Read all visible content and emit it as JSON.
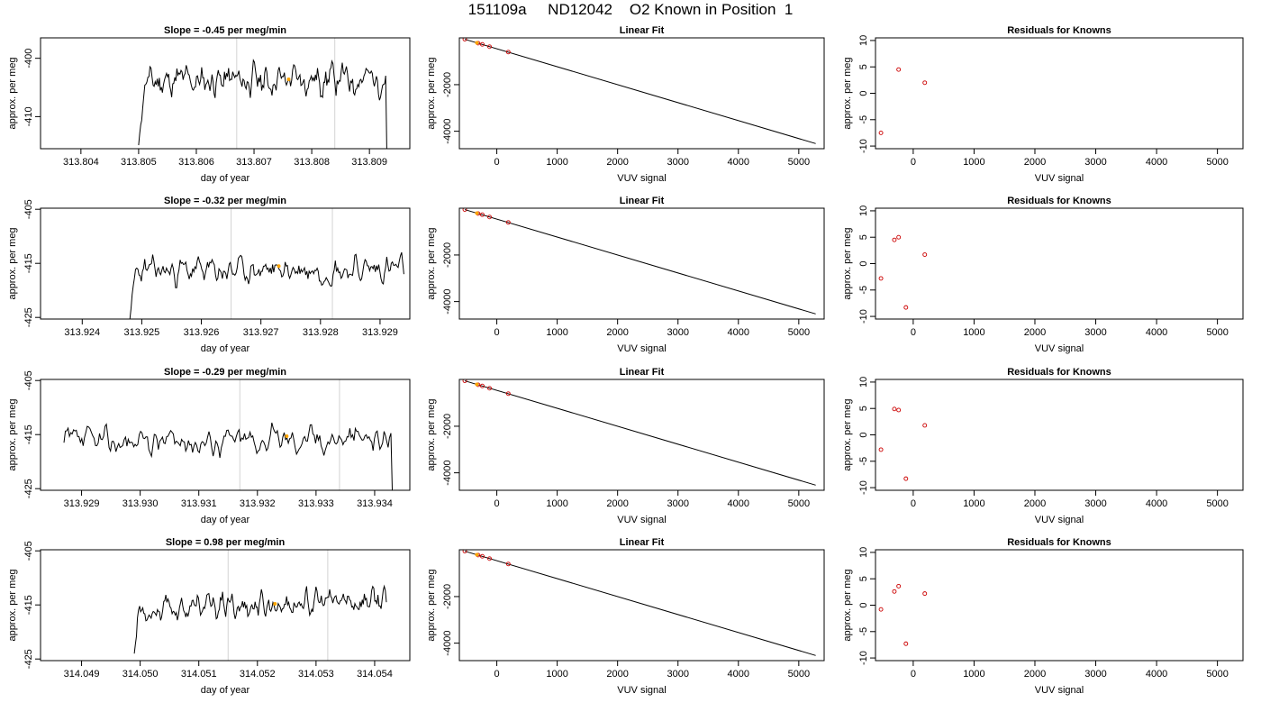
{
  "page_title": "151109a     ND12042    O2 Known in Position  1",
  "colors": {
    "trace": "#000000",
    "gridline": "#d3d3d3",
    "residual_point": "#cc0000",
    "highlight": "#ffa500",
    "frame": "#000000"
  },
  "chart_data": [
    {
      "type": "line",
      "title": "Slope =  -0.45  per meg/min",
      "xlabel": "day of year",
      "ylabel": "approx. per meg",
      "xlim": [
        313.8033,
        313.8097
      ],
      "ylim": [
        -415.5,
        -396.5
      ],
      "xticks": [
        "313.804",
        "313.805",
        "313.806",
        "313.807",
        "313.808",
        "313.809"
      ],
      "xtick_values": [
        313.804,
        313.805,
        313.806,
        313.807,
        313.808,
        313.809
      ],
      "yticks": [
        "-400",
        "-410"
      ],
      "ytick_values": [
        -400,
        -410
      ],
      "vlines": [
        313.8067,
        313.8084
      ],
      "x_start": 313.805,
      "x_end": 313.8093,
      "y_start": -414.9,
      "y_end": -415.5,
      "baseline": -404.0,
      "noise": 2.6,
      "trend_end": 0.6,
      "rise_steps": 6,
      "seed": 11,
      "highlight_x": 313.8076,
      "highlight_y": -403.6
    },
    {
      "type": "line",
      "title": "Linear Fit",
      "xlabel": "VUV signal",
      "ylabel": "approx. per meg",
      "xlim": [
        -620,
        5420
      ],
      "ylim": [
        -4750,
        10
      ],
      "xticks": [
        "0",
        "1000",
        "2000",
        "3000",
        "4000",
        "5000"
      ],
      "xtick_values": [
        0,
        1000,
        2000,
        3000,
        4000,
        5000
      ],
      "yticks": [
        "-2000",
        "-4000"
      ],
      "ytick_values": [
        -2000,
        -4000
      ],
      "line": {
        "x": [
          -530,
          5280
        ],
        "y": [
          -50,
          -4530
        ]
      },
      "points": {
        "x": [
          -530,
          -310,
          -240,
          -120,
          190
        ],
        "y": [
          -50,
          -220,
          -270,
          -370,
          -600
        ]
      },
      "highlight_x": -330,
      "highlight_y": -205
    },
    {
      "type": "scatter",
      "title": "Residuals for Knowns",
      "xlabel": "VUV signal",
      "ylabel": "approx. per meg",
      "xlim": [
        -620,
        5420
      ],
      "ylim": [
        -10.5,
        10.5
      ],
      "xticks": [
        "0",
        "1000",
        "2000",
        "3000",
        "4000",
        "5000"
      ],
      "xtick_values": [
        0,
        1000,
        2000,
        3000,
        4000,
        5000
      ],
      "yticks": [
        "10",
        "5",
        "0",
        "-5",
        "-10"
      ],
      "ytick_values": [
        10,
        5,
        0,
        -5,
        -10
      ],
      "points": {
        "x": [
          -530,
          -240,
          190
        ],
        "y": [
          -7.5,
          4.5,
          2.0
        ]
      }
    },
    {
      "type": "line",
      "title": "Slope =  -0.32  per meg/min",
      "xlabel": "day of year",
      "ylabel": "approx. per meg",
      "xlim": [
        313.9233,
        313.9295
      ],
      "ylim": [
        -425.3,
        -404.8
      ],
      "xticks": [
        "313.924",
        "313.925",
        "313.926",
        "313.927",
        "313.928",
        "313.929"
      ],
      "xtick_values": [
        313.924,
        313.925,
        313.926,
        313.927,
        313.928,
        313.929
      ],
      "yticks": [
        "-405",
        "-415",
        "-425"
      ],
      "ytick_values": [
        -405,
        -415,
        -425
      ],
      "vlines": [
        313.9265,
        313.9282
      ],
      "x_start": 313.9248,
      "x_end": 313.9294,
      "y_start": -425.3,
      "y_end": -417.0,
      "baseline": -416.5,
      "noise": 2.4,
      "trend_end": 0.5,
      "rise_steps": 5,
      "seed": 23,
      "highlight_x": 313.9273,
      "highlight_y": -415.5
    },
    {
      "type": "line",
      "title": "Linear Fit",
      "xlabel": "VUV signal",
      "ylabel": "approx. per meg",
      "xlim": [
        -620,
        5420
      ],
      "ylim": [
        -4750,
        10
      ],
      "xticks": [
        "0",
        "1000",
        "2000",
        "3000",
        "4000",
        "5000"
      ],
      "xtick_values": [
        0,
        1000,
        2000,
        3000,
        4000,
        5000
      ],
      "yticks": [
        "-2000",
        "-4000"
      ],
      "ytick_values": [
        -2000,
        -4000
      ],
      "line": {
        "x": [
          -530,
          5280
        ],
        "y": [
          -50,
          -4530
        ]
      },
      "points": {
        "x": [
          -530,
          -310,
          -240,
          -120,
          190
        ],
        "y": [
          -50,
          -220,
          -270,
          -370,
          -600
        ]
      },
      "highlight_x": -330,
      "highlight_y": -205
    },
    {
      "type": "scatter",
      "title": "Residuals for Knowns",
      "xlabel": "VUV signal",
      "ylabel": "approx. per meg",
      "xlim": [
        -620,
        5420
      ],
      "ylim": [
        -10.5,
        10.5
      ],
      "xticks": [
        "0",
        "1000",
        "2000",
        "3000",
        "4000",
        "5000"
      ],
      "xtick_values": [
        0,
        1000,
        2000,
        3000,
        4000,
        5000
      ],
      "yticks": [
        "10",
        "5",
        "0",
        "-5",
        "-10"
      ],
      "ytick_values": [
        10,
        5,
        0,
        -5,
        -10
      ],
      "points": {
        "x": [
          -530,
          -310,
          -240,
          -120,
          190
        ],
        "y": [
          -2.8,
          4.5,
          5.0,
          -8.3,
          1.7
        ]
      }
    },
    {
      "type": "line",
      "title": "Slope =  -0.29  per meg/min",
      "xlabel": "day of year",
      "ylabel": "approx. per meg",
      "xlim": [
        313.9283,
        313.9346
      ],
      "ylim": [
        -425.3,
        -404.8
      ],
      "xticks": [
        "313.929",
        "313.930",
        "313.931",
        "313.932",
        "313.933",
        "313.934"
      ],
      "xtick_values": [
        313.929,
        313.93,
        313.931,
        313.932,
        313.933,
        313.934
      ],
      "yticks": [
        "-405",
        "-415",
        "-425"
      ],
      "ytick_values": [
        -405,
        -415,
        -425
      ],
      "vlines": [
        313.9317,
        313.9334
      ],
      "x_start": 313.9287,
      "x_end": 313.9343,
      "y_start": -416.5,
      "y_end": -425.3,
      "baseline": -416.5,
      "noise": 2.5,
      "trend_end": 1.0,
      "rise_steps": 0,
      "seed": 37,
      "highlight_x": 313.9325,
      "highlight_y": -415.3
    },
    {
      "type": "line",
      "title": "Linear Fit",
      "xlabel": "VUV signal",
      "ylabel": "approx. per meg",
      "xlim": [
        -620,
        5420
      ],
      "ylim": [
        -4750,
        10
      ],
      "xticks": [
        "0",
        "1000",
        "2000",
        "3000",
        "4000",
        "5000"
      ],
      "xtick_values": [
        0,
        1000,
        2000,
        3000,
        4000,
        5000
      ],
      "yticks": [
        "-2000",
        "-4000"
      ],
      "ytick_values": [
        -2000,
        -4000
      ],
      "line": {
        "x": [
          -530,
          5280
        ],
        "y": [
          -50,
          -4530
        ]
      },
      "points": {
        "x": [
          -530,
          -310,
          -240,
          -120,
          190
        ],
        "y": [
          -50,
          -220,
          -270,
          -370,
          -600
        ]
      },
      "highlight_x": -330,
      "highlight_y": -205
    },
    {
      "type": "scatter",
      "title": "Residuals for Knowns",
      "xlabel": "VUV signal",
      "ylabel": "approx. per meg",
      "xlim": [
        -620,
        5420
      ],
      "ylim": [
        -10.5,
        10.5
      ],
      "xticks": [
        "0",
        "1000",
        "2000",
        "3000",
        "4000",
        "5000"
      ],
      "xtick_values": [
        0,
        1000,
        2000,
        3000,
        4000,
        5000
      ],
      "yticks": [
        "10",
        "5",
        "0",
        "-5",
        "-10"
      ],
      "ytick_values": [
        10,
        5,
        0,
        -5,
        -10
      ],
      "points": {
        "x": [
          -530,
          -310,
          -240,
          -120,
          190
        ],
        "y": [
          -2.8,
          4.9,
          4.7,
          -8.3,
          1.8
        ]
      }
    },
    {
      "type": "line",
      "title": "Slope =  0.98  per meg/min",
      "xlabel": "day of year",
      "ylabel": "approx. per meg",
      "xlim": [
        314.0483,
        314.0546
      ],
      "ylim": [
        -425.3,
        -404.8
      ],
      "xticks": [
        "314.049",
        "314.050",
        "314.051",
        "314.052",
        "314.053",
        "314.054"
      ],
      "xtick_values": [
        314.049,
        314.05,
        314.051,
        314.052,
        314.053,
        314.054
      ],
      "yticks": [
        "-405",
        "-415",
        "-425"
      ],
      "ytick_values": [
        -405,
        -415,
        -425
      ],
      "vlines": [
        314.0515,
        314.0532
      ],
      "x_start": 314.0499,
      "x_end": 314.0542,
      "y_start": -424.0,
      "y_end": -414.5,
      "baseline": -416.0,
      "noise": 2.3,
      "trend_end": 2.0,
      "rise_steps": 4,
      "seed": 53,
      "highlight_x": 314.0523,
      "highlight_y": -414.8
    },
    {
      "type": "line",
      "title": "Linear Fit",
      "xlabel": "VUV signal",
      "ylabel": "approx. per meg",
      "xlim": [
        -620,
        5420
      ],
      "ylim": [
        -4750,
        10
      ],
      "xticks": [
        "0",
        "1000",
        "2000",
        "3000",
        "4000",
        "5000"
      ],
      "xtick_values": [
        0,
        1000,
        2000,
        3000,
        4000,
        5000
      ],
      "yticks": [
        "-2000",
        "-4000"
      ],
      "ytick_values": [
        -2000,
        -4000
      ],
      "line": {
        "x": [
          -530,
          5280
        ],
        "y": [
          -50,
          -4530
        ]
      },
      "points": {
        "x": [
          -530,
          -310,
          -240,
          -120,
          190
        ],
        "y": [
          -50,
          -220,
          -270,
          -370,
          -600
        ]
      },
      "highlight_x": -330,
      "highlight_y": -205
    },
    {
      "type": "scatter",
      "title": "Residuals for Knowns",
      "xlabel": "VUV signal",
      "ylabel": "approx. per meg",
      "xlim": [
        -620,
        5420
      ],
      "ylim": [
        -10.5,
        10.5
      ],
      "xticks": [
        "0",
        "1000",
        "2000",
        "3000",
        "4000",
        "5000"
      ],
      "xtick_values": [
        0,
        1000,
        2000,
        3000,
        4000,
        5000
      ],
      "yticks": [
        "10",
        "5",
        "0",
        "-5",
        "-10"
      ],
      "ytick_values": [
        10,
        5,
        0,
        -5,
        -10
      ],
      "points": {
        "x": [
          -530,
          -310,
          -240,
          -120,
          190
        ],
        "y": [
          -0.8,
          2.6,
          3.6,
          -7.3,
          2.2
        ]
      }
    }
  ]
}
